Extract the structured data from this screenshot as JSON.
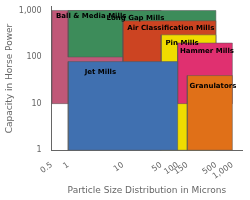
{
  "chart_data": {
    "type": "box",
    "xlabel": "Particle Size Distribution in Microns",
    "ylabel": "Capacity in Horse Power",
    "log": true,
    "grid": false,
    "series": [
      {
        "name": "Ball & Media Mills",
        "color": "#c05878",
        "x": [
          0.5,
          50
        ],
        "y": [
          10,
          1000
        ],
        "label_x": 0.6,
        "label_y": 900
      },
      {
        "name": "Long Gap Mills",
        "color": "#3d8c5a",
        "x": [
          1,
          500
        ],
        "y": [
          100,
          1000
        ],
        "label_x": 5,
        "label_y": 820
      },
      {
        "name": "Air Classification Mills",
        "color": "#cc4422",
        "x": [
          10,
          500
        ],
        "y": [
          30,
          600
        ],
        "label_x": 12,
        "label_y": 500
      },
      {
        "name": "Pin Mills",
        "color": "#f0dc00",
        "x": [
          50,
          500
        ],
        "y": [
          1,
          300
        ],
        "label_x": 60,
        "label_y": 240
      },
      {
        "name": "Hammer Mills",
        "color": "#e03070",
        "x": [
          100,
          1000
        ],
        "y": [
          10,
          200
        ],
        "label_x": 110,
        "label_y": 160
      },
      {
        "name": "Jet Mills",
        "color": "#4070b0",
        "x": [
          1,
          100
        ],
        "y": [
          1,
          80
        ],
        "label_x": 2,
        "label_y": 55
      },
      {
        "name": "Granulators",
        "color": "#e07018",
        "x": [
          150,
          1000
        ],
        "y": [
          1,
          40
        ],
        "label_x": 165,
        "label_y": 28
      }
    ],
    "xlim": [
      0.5,
      1500
    ],
    "ylim": [
      1,
      1200
    ],
    "xticks": [
      0.5,
      1,
      10,
      50,
      100,
      150,
      500,
      {
        "value": 1000,
        "label": "1,000"
      }
    ],
    "yticks": [
      1,
      10,
      100,
      {
        "value": 1000,
        "label": "1,000"
      }
    ]
  }
}
